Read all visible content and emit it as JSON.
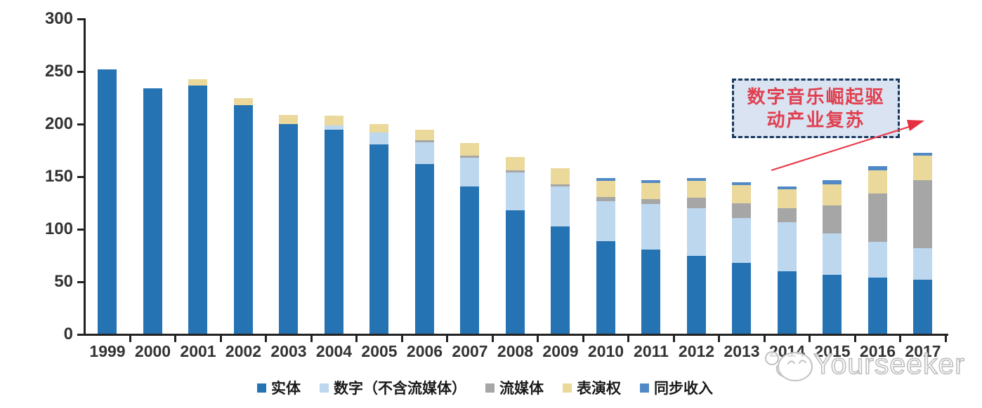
{
  "chart_data": {
    "type": "bar",
    "stacked": true,
    "title": "",
    "xlabel": "",
    "ylabel": "",
    "ylim": [
      0,
      300
    ],
    "yticks": [
      0,
      50,
      100,
      150,
      200,
      250,
      300
    ],
    "grid": false,
    "legend_position": "bottom",
    "categories": [
      "1999",
      "2000",
      "2001",
      "2002",
      "2003",
      "2004",
      "2005",
      "2006",
      "2007",
      "2008",
      "2009",
      "2010",
      "2011",
      "2012",
      "2013",
      "2014",
      "2015",
      "2016",
      "2017"
    ],
    "series": [
      {
        "name": "实体",
        "color": "#2573B3",
        "values": [
          252,
          234,
          237,
          218,
          200,
          195,
          181,
          162,
          141,
          118,
          103,
          89,
          81,
          75,
          68,
          60,
          57,
          54,
          52
        ]
      },
      {
        "name": "数字（不含流媒体）",
        "color": "#BDD7EE",
        "values": [
          0,
          0,
          0,
          0,
          0,
          4,
          11,
          21,
          27,
          36,
          38,
          38,
          43,
          45,
          43,
          47,
          39,
          34,
          30
        ]
      },
      {
        "name": "流媒体",
        "color": "#A6A6A6",
        "values": [
          0,
          0,
          0,
          0,
          0,
          0,
          0,
          2,
          2,
          2,
          2,
          4,
          5,
          10,
          14,
          13,
          27,
          46,
          65
        ]
      },
      {
        "name": "表演权",
        "color": "#EBD89B",
        "values": [
          0,
          0,
          6,
          7,
          9,
          9,
          8,
          10,
          12,
          13,
          15,
          15,
          15,
          16,
          17,
          18,
          20,
          22,
          23
        ]
      },
      {
        "name": "同步收入",
        "color": "#5089C6",
        "values": [
          0,
          0,
          0,
          0,
          0,
          0,
          0,
          0,
          0,
          0,
          0,
          3,
          3,
          3,
          3,
          3,
          4,
          4,
          3
        ]
      }
    ]
  },
  "annotation": {
    "line1": "数字音乐崛起驱",
    "line2": "动产业复苏",
    "text_color": "#E04050",
    "border_color": "#17375E",
    "fill_color": "#DAE3F1",
    "arrow_color": "#EA3B4B"
  },
  "watermark": {
    "text": "Yourseeker"
  },
  "axis": {
    "color": "#222222",
    "label_color": "#333333"
  }
}
